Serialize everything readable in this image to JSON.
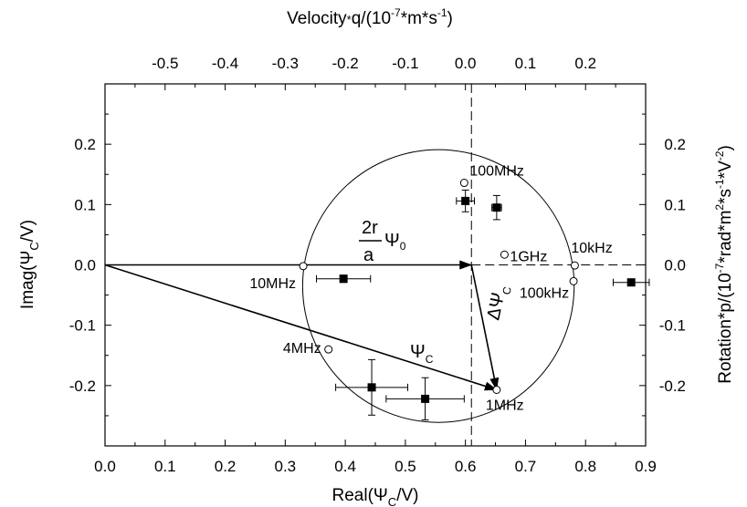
{
  "chart_data": {
    "type": "scatter",
    "xlabel": "Real(Ψ_C/V)",
    "ylabel": "Imag(Ψ_C/V)",
    "top_axis_label": "Velocity*q/(10^-7*m*s^-1)",
    "right_axis_label": "Rotation*p/(10^-7*rad*m^2*s^-1*V^-2)",
    "xlim": [
      0.0,
      0.9
    ],
    "ylim": [
      -0.3,
      0.3
    ],
    "top_xlim": [
      -0.6,
      0.3
    ],
    "x_ticks": [
      "0.0",
      "0.1",
      "0.2",
      "0.3",
      "0.4",
      "0.5",
      "0.6",
      "0.7",
      "0.8",
      "0.9"
    ],
    "y_ticks": [
      "0.2",
      "0.1",
      "0.0",
      "-0.1",
      "-0.2"
    ],
    "top_ticks": [
      "-0.5",
      "-0.4",
      "-0.3",
      "-0.2",
      "-0.1",
      "0.0",
      "0.1",
      "0.2"
    ],
    "right_ticks": [
      "0.2",
      "0.1",
      "0.0",
      "-0.1",
      "-0.2"
    ],
    "grid": false,
    "circle": {
      "center": [
        0.555,
        -0.035
      ],
      "radius": 0.226
    },
    "dashed_vertical_x": 0.61,
    "dashed_horizontal_y": 0.0,
    "theory_points": [
      {
        "label": "100MHz",
        "x": 0.598,
        "y": 0.136
      },
      {
        "label": "1GHz",
        "x": 0.665,
        "y": 0.017
      },
      {
        "label": "10kHz",
        "x": 0.782,
        "y": -0.001
      },
      {
        "label": "100kHz",
        "x": 0.78,
        "y": -0.027
      },
      {
        "label": "10MHz",
        "x": 0.33,
        "y": -0.002
      },
      {
        "label": "4MHz",
        "x": 0.372,
        "y": -0.14
      },
      {
        "label": "1MHz",
        "x": 0.652,
        "y": -0.207
      }
    ],
    "measured_points": [
      {
        "x": 0.6,
        "y": 0.106,
        "xerr": 0.015,
        "yerr": 0.018
      },
      {
        "x": 0.652,
        "y": 0.095,
        "xerr": 0.008,
        "yerr": 0.02
      },
      {
        "x": 0.397,
        "y": -0.023,
        "xerr": 0.045,
        "yerr": 0.006
      },
      {
        "x": 0.876,
        "y": -0.029,
        "xerr": 0.03,
        "yerr": 0.0
      },
      {
        "x": 0.444,
        "y": -0.203,
        "xerr": 0.06,
        "yerr": 0.046
      },
      {
        "x": 0.533,
        "y": -0.222,
        "xerr": 0.065,
        "yerr": 0.035
      }
    ],
    "vectors": [
      {
        "name": "2r/a Ψ0",
        "from": [
          0.0,
          0.0
        ],
        "to": [
          0.61,
          0.0
        ]
      },
      {
        "name": "Ψ_C",
        "from": [
          0.0,
          0.0
        ],
        "to": [
          0.652,
          -0.207
        ]
      },
      {
        "name": "ΔΨ_C",
        "from": [
          0.61,
          0.0
        ],
        "to": [
          0.652,
          -0.207
        ]
      }
    ],
    "annotations": {
      "vector_r": "2r",
      "vector_a": "a",
      "vector_psi0": "Ψ",
      "vector_psi0_sub": "0",
      "psi_c": "Ψ",
      "psi_c_sub": "C",
      "delta_psi_c": "ΔΨ",
      "delta_psi_c_sub": "C"
    },
    "axis_texts": {
      "x_main": "Real(Ψ",
      "x_sub": "C",
      "x_tail": "/V)",
      "y_main": "Imag(Ψ",
      "y_sub": "C",
      "y_tail": "/V)",
      "top_a": "Velocity",
      "top_star": "*",
      "top_b": "q/(10",
      "top_exp": "-7",
      "top_c": "*m*s",
      "top_exp2": "-1",
      "top_d": ")",
      "right_a": "Rotation*p/(10",
      "right_exp": "-7",
      "right_b": "*rad*m",
      "right_exp2": "2",
      "right_c": "*s",
      "right_exp3": "-1",
      "right_d": "*V",
      "right_exp4": "-2",
      "right_e": ")"
    }
  }
}
